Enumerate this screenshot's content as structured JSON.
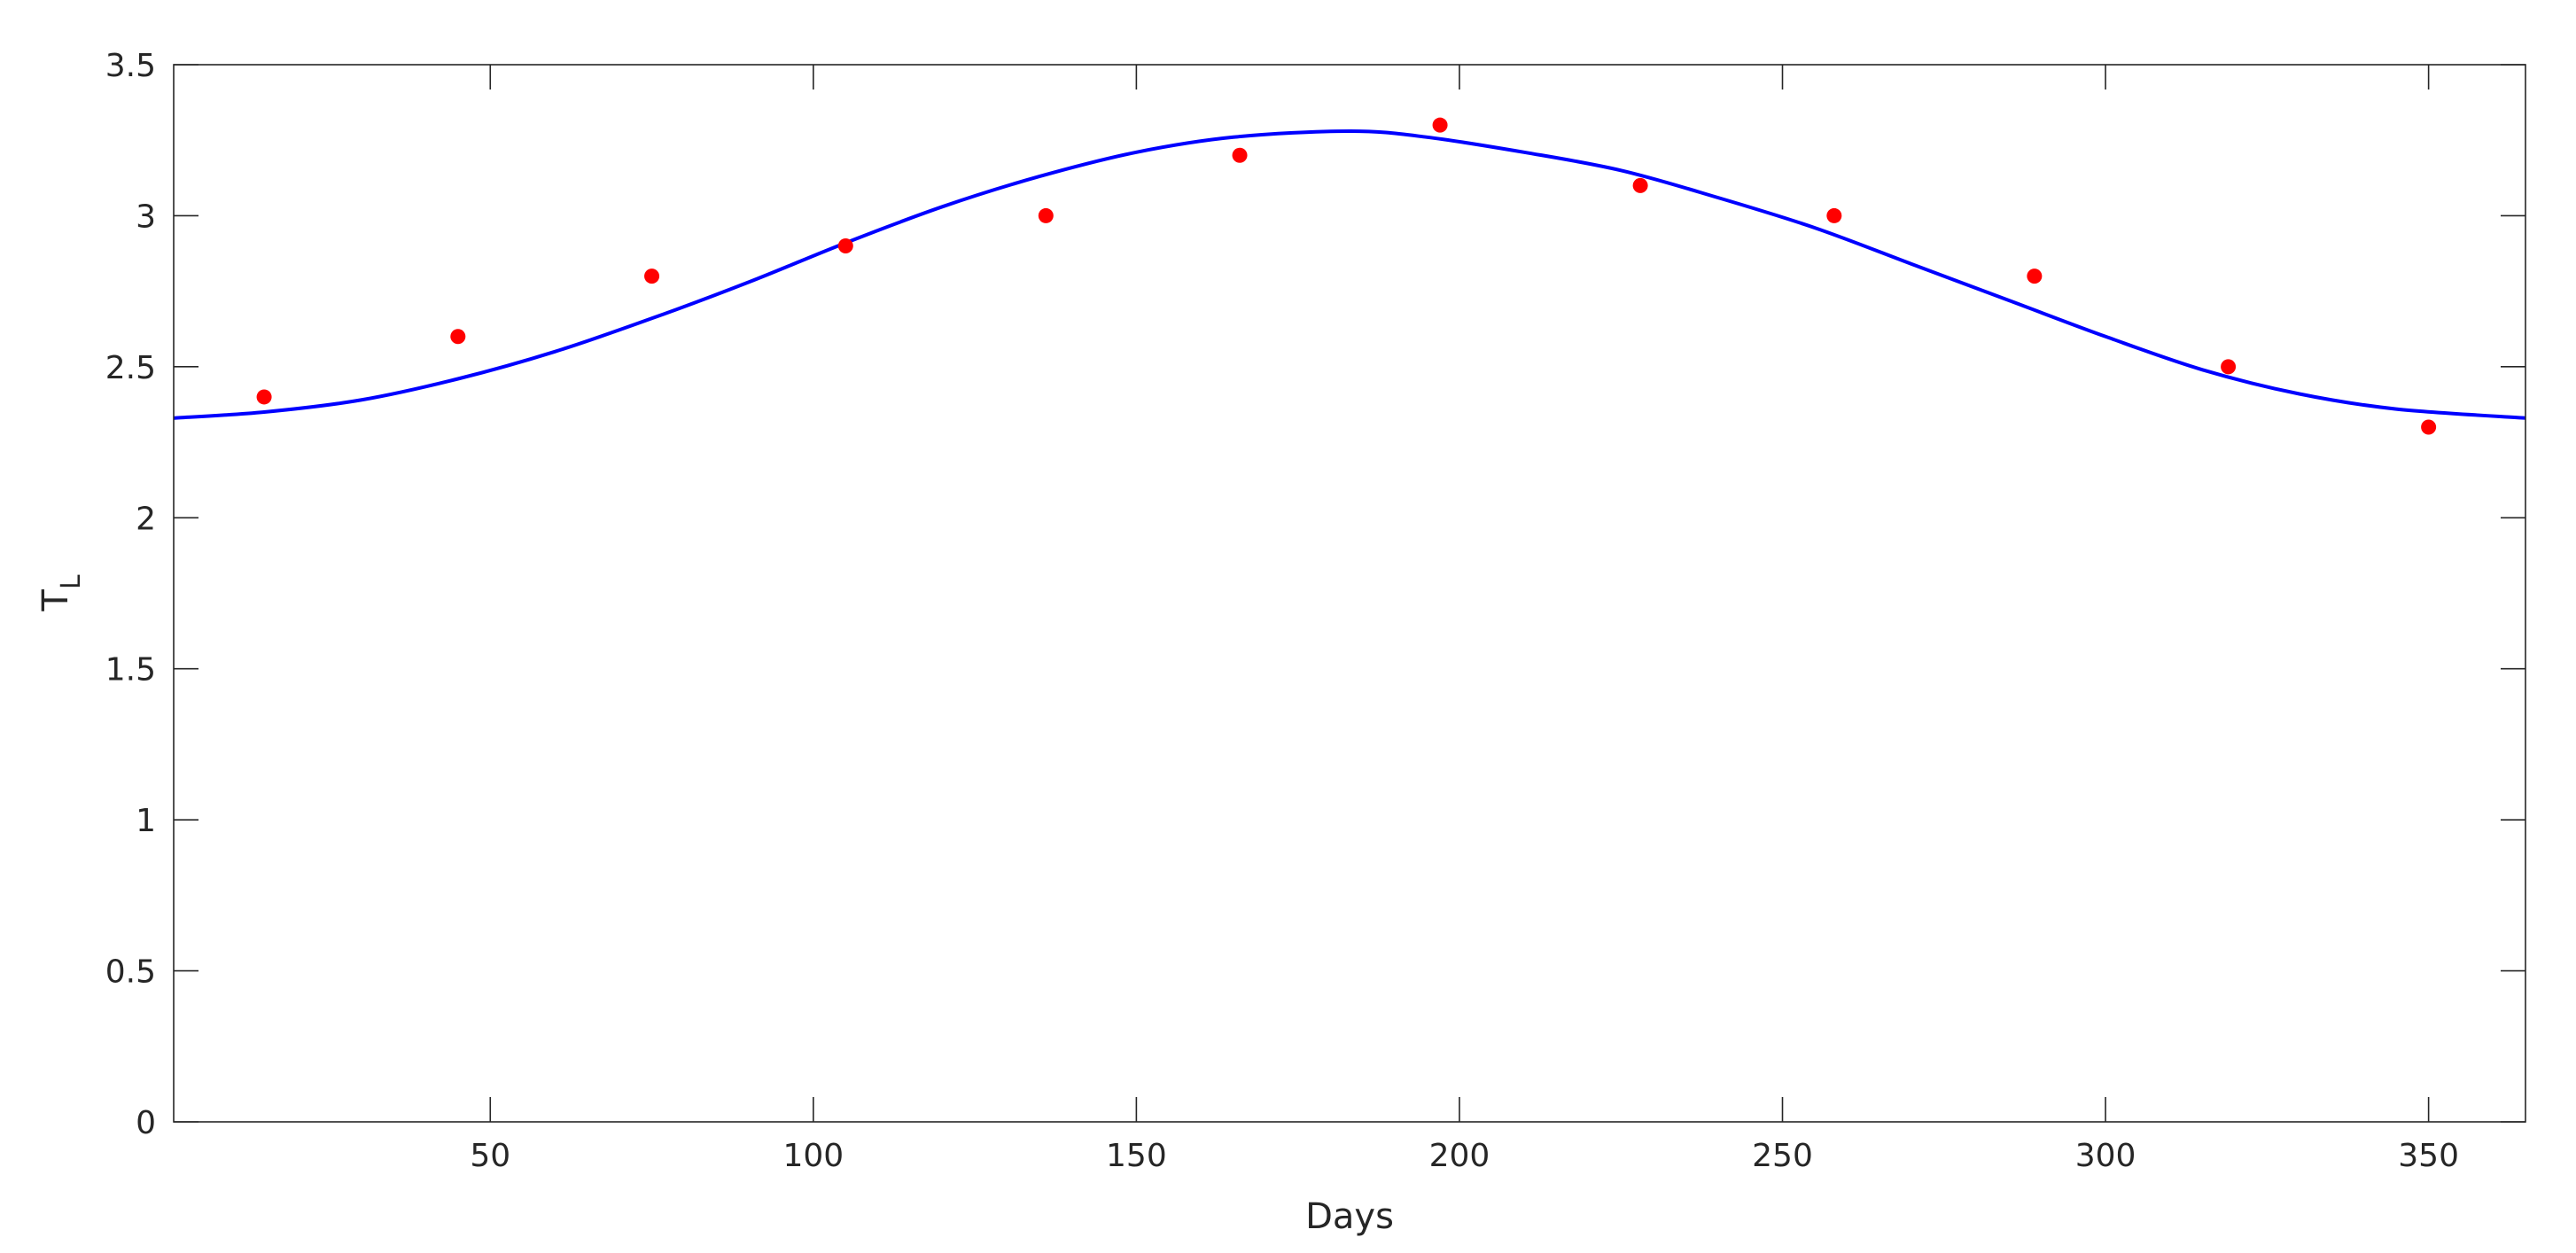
{
  "chart_data": {
    "type": "scatter",
    "xlabel": "Days",
    "ylabel_main": "T",
    "ylabel_sub": "L",
    "xlim": [
      1,
      365
    ],
    "ylim": [
      0,
      3.5
    ],
    "grid": false,
    "x_ticks": [
      50,
      100,
      150,
      200,
      250,
      300,
      350
    ],
    "x_tick_labels": [
      "50",
      "100",
      "150",
      "200",
      "250",
      "300",
      "350"
    ],
    "y_ticks": [
      0,
      0.5,
      1,
      1.5,
      2,
      2.5,
      3,
      3.5
    ],
    "y_tick_labels": [
      "0",
      "0.5",
      "1",
      "1.5",
      "2",
      "2.5",
      "3",
      "3.5"
    ],
    "series": [
      {
        "kind": "points",
        "color": "#ff0000",
        "x": [
          15,
          45,
          75,
          105,
          136,
          166,
          197,
          228,
          258,
          289,
          319,
          350
        ],
        "y": [
          2.4,
          2.6,
          2.8,
          2.9,
          3.0,
          3.2,
          3.3,
          3.1,
          3.0,
          2.8,
          2.5,
          2.3
        ]
      },
      {
        "kind": "curve",
        "color": "#0000ff",
        "x": [
          1,
          15,
          30,
          45,
          60,
          75,
          90,
          105,
          120,
          135,
          150,
          165,
          183,
          195,
          210,
          225,
          240,
          255,
          270,
          285,
          300,
          315,
          330,
          345,
          365
        ],
        "y": [
          2.33,
          2.35,
          2.39,
          2.46,
          2.55,
          2.66,
          2.78,
          2.91,
          3.03,
          3.13,
          3.21,
          3.26,
          3.28,
          3.26,
          3.21,
          3.15,
          3.06,
          2.96,
          2.84,
          2.72,
          2.6,
          2.49,
          2.41,
          2.36,
          2.33
        ]
      }
    ]
  }
}
